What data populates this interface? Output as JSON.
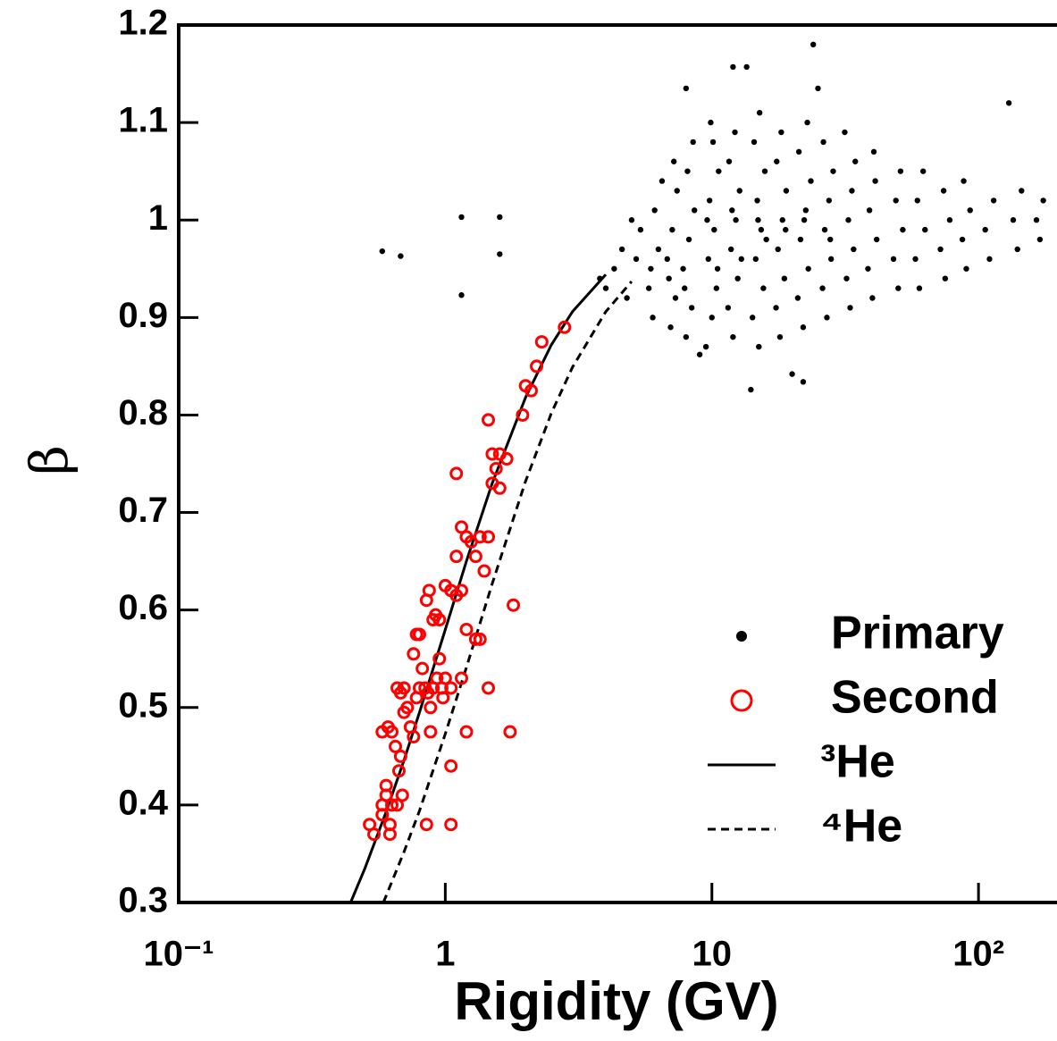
{
  "chart_data": {
    "type": "scatter",
    "xlabel": "Rigidity (GV)",
    "ylabel": "β",
    "xscale": "log",
    "xlim": [
      0.1,
      197
    ],
    "ylim": [
      0.3,
      1.2
    ],
    "xticks": [
      {
        "value": 0.1,
        "label": "10⁻¹"
      },
      1,
      10,
      {
        "value": 100,
        "label": "10²"
      }
    ],
    "yticks": [
      0.3,
      0.4,
      0.5,
      0.6,
      0.7,
      0.8,
      0.9,
      1,
      1.1,
      1.2
    ],
    "legend": "lower right",
    "series": [
      {
        "name": "Primary",
        "type": "scatter",
        "marker": "dot",
        "color": "#000000",
        "x": [
          4.0,
          4.3,
          3.8,
          4.8,
          5.2,
          5.0,
          4.6,
          5.4,
          6.0,
          5.8,
          6.3,
          6.1,
          6.5,
          5.9,
          7.0,
          7.3,
          6.8,
          7.1,
          7.4,
          7.2,
          6.9,
          8.0,
          8.4,
          7.8,
          8.2,
          8.6,
          8.1,
          8.5,
          7.9,
          9.5,
          10,
          10.4,
          9.7,
          10.2,
          9.8,
          10.6,
          10.1,
          9.9,
          10.5,
          9.6,
          12,
          11.5,
          12.5,
          11.8,
          12.3,
          12.7,
          11.6,
          12.2,
          12.9,
          11.9,
          15,
          14.2,
          15.6,
          14.6,
          15.3,
          14.8,
          15.8,
          14.4,
          15.1,
          16,
          14.9,
          18,
          17.4,
          18.7,
          17.7,
          18.4,
          19,
          17.5,
          18.2,
          18.9,
          22,
          21,
          23,
          21.5,
          22.5,
          23.5,
          21.2,
          22.8,
          22.2,
          27,
          26,
          28,
          26.5,
          27.5,
          28.5,
          26.2,
          27.8,
          33,
          32,
          34,
          32.5,
          33.5,
          34.5,
          31.5,
          40,
          38.5,
          41.5,
          39,
          41,
          40.5,
          50,
          48,
          52,
          49,
          51,
          60,
          58,
          63,
          59,
          62,
          75,
          72,
          78,
          74,
          90,
          87,
          93,
          88,
          110,
          106,
          114,
          140,
          135,
          145,
          170,
          165,
          175,
          0.58,
          0.68,
          1.15,
          1.15,
          1.6,
          1.6,
          24,
          12,
          13.5,
          8,
          25,
          130,
          14,
          20,
          22,
          9
        ],
        "y": [
          0.93,
          0.95,
          0.94,
          0.92,
          0.96,
          1.0,
          0.97,
          0.99,
          0.9,
          0.93,
          0.97,
          1.01,
          1.04,
          0.95,
          0.89,
          0.92,
          0.96,
          0.99,
          1.03,
          1.06,
          0.94,
          0.88,
          0.91,
          0.95,
          0.98,
          1.01,
          1.05,
          1.08,
          0.93,
          0.87,
          0.9,
          0.93,
          0.96,
          0.99,
          1.02,
          1.05,
          1.08,
          1.1,
          0.95,
          1.0,
          0.88,
          0.91,
          0.94,
          0.97,
          1.0,
          1.03,
          1.06,
          1.09,
          0.96,
          1.01,
          0.87,
          0.9,
          0.93,
          0.96,
          0.99,
          1.02,
          1.05,
          1.08,
          1.11,
          0.98,
          1.0,
          0.88,
          0.91,
          0.94,
          0.97,
          1.0,
          1.03,
          1.06,
          1.09,
          0.99,
          0.89,
          0.92,
          0.95,
          0.98,
          1.01,
          1.04,
          1.07,
          1.1,
          1.0,
          0.9,
          0.93,
          0.96,
          0.99,
          1.02,
          1.05,
          1.08,
          0.98,
          0.91,
          0.94,
          0.97,
          1.0,
          1.03,
          1.06,
          1.09,
          0.92,
          0.95,
          0.98,
          1.01,
          1.04,
          1.07,
          0.93,
          0.96,
          0.99,
          1.02,
          1.05,
          0.93,
          0.96,
          0.99,
          1.02,
          1.05,
          0.94,
          0.97,
          1.0,
          1.03,
          0.95,
          0.98,
          1.01,
          1.04,
          0.96,
          0.99,
          1.02,
          0.97,
          1.0,
          1.03,
          0.98,
          1.0,
          1.02,
          0.968,
          0.963,
          1.003,
          0.923,
          1.003,
          0.965,
          1.18,
          1.157,
          1.157,
          1.135,
          1.135,
          1.12,
          0.826,
          0.842,
          0.834,
          0.862
        ]
      },
      {
        "name": "Second",
        "type": "scatter",
        "marker": "circle",
        "color": "#ff0000",
        "x": [
          0.52,
          0.54,
          0.58,
          0.58,
          0.6,
          0.62,
          0.62,
          0.6,
          0.63,
          0.66,
          0.69,
          0.58,
          0.61,
          0.63,
          0.65,
          0.67,
          0.68,
          0.7,
          0.72,
          0.66,
          0.68,
          0.7,
          0.74,
          0.76,
          0.78,
          0.8,
          0.82,
          0.84,
          0.86,
          0.88,
          0.9,
          0.93,
          0.95,
          0.97,
          1.0,
          1.05,
          0.76,
          0.78,
          0.8,
          0.85,
          0.87,
          0.9,
          0.92,
          0.95,
          1.0,
          1.05,
          1.1,
          1.15,
          1.1,
          1.15,
          1.2,
          1.25,
          1.3,
          1.35,
          1.4,
          1.45,
          1.5,
          1.55,
          1.6,
          1.45,
          1.5,
          1.6,
          1.7,
          1.95,
          2.0,
          2.1,
          2.2,
          2.3,
          2.8,
          1.1,
          1.2,
          1.3,
          1.35,
          1.8,
          1.75,
          1.45,
          1.2,
          1.05,
          0.85,
          1.05,
          0.88,
          0.98,
          1.15
        ],
        "y": [
          0.38,
          0.37,
          0.4,
          0.39,
          0.41,
          0.38,
          0.37,
          0.42,
          0.4,
          0.4,
          0.41,
          0.475,
          0.48,
          0.475,
          0.46,
          0.435,
          0.45,
          0.495,
          0.5,
          0.52,
          0.515,
          0.52,
          0.48,
          0.47,
          0.51,
          0.52,
          0.54,
          0.52,
          0.515,
          0.5,
          0.52,
          0.53,
          0.55,
          0.52,
          0.53,
          0.52,
          0.555,
          0.575,
          0.575,
          0.61,
          0.62,
          0.59,
          0.595,
          0.59,
          0.625,
          0.62,
          0.615,
          0.62,
          0.655,
          0.685,
          0.675,
          0.67,
          0.655,
          0.675,
          0.64,
          0.675,
          0.76,
          0.745,
          0.76,
          0.795,
          0.73,
          0.725,
          0.755,
          0.8,
          0.83,
          0.825,
          0.85,
          0.875,
          0.89,
          0.74,
          0.58,
          0.57,
          0.57,
          0.605,
          0.475,
          0.52,
          0.475,
          0.44,
          0.38,
          0.38,
          0.475,
          0.51,
          0.53
        ]
      },
      {
        "name": "³He",
        "type": "line",
        "linestyle": "solid",
        "color": "#000000",
        "x": [
          0.4415,
          0.5,
          0.6,
          0.7,
          0.8,
          1,
          1.2,
          1.5,
          2,
          2.5,
          3,
          4
        ],
        "y": [
          0.3,
          0.3355,
          0.393,
          0.446,
          0.495,
          0.58,
          0.65,
          0.73,
          0.818,
          0.872,
          0.906,
          0.944
        ]
      },
      {
        "name": "⁴He",
        "type": "line",
        "linestyle": "dashed",
        "color": "#000000",
        "x": [
          0.586,
          0.7,
          0.8,
          1,
          1.2,
          1.5,
          2,
          2.5,
          3,
          4,
          5
        ],
        "y": [
          0.3,
          0.352,
          0.394,
          0.473,
          0.541,
          0.627,
          0.732,
          0.802,
          0.849,
          0.906,
          0.937
        ]
      }
    ]
  }
}
